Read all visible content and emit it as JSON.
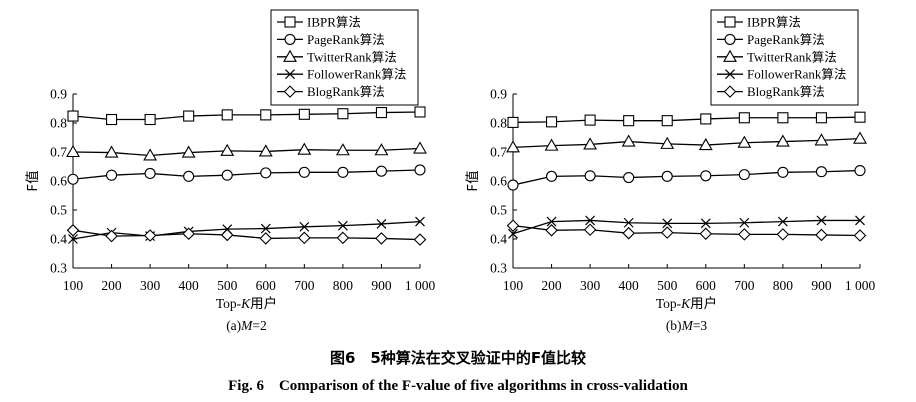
{
  "figure": {
    "caption_cn": "图6　5种算法在交叉验证中的F值比较",
    "caption_en": "Fig. 6　Comparison of the F-value of five algorithms in cross-validation"
  },
  "chart_data": [
    {
      "type": "line",
      "panel_label_prefix": "(a)",
      "panel_label_var": "M",
      "panel_label_rest": "=2",
      "xlabel_prefix": "Top-",
      "xlabel_var": "K",
      "xlabel_suffix": "用户",
      "ylabel": "F值",
      "x": [
        100,
        200,
        300,
        400,
        500,
        600,
        700,
        800,
        900,
        1000
      ],
      "x_tick_labels": [
        "100",
        "200",
        "300",
        "400",
        "500",
        "600",
        "700",
        "800",
        "900",
        "1 000"
      ],
      "ylim": [
        0.3,
        0.9
      ],
      "y_ticks": [
        "0.3",
        "0.4",
        "0.5",
        "0.6",
        "0.7",
        "0.8",
        "0.9"
      ],
      "grid": false,
      "legend_position": "top-right",
      "series": [
        {
          "name": "IBPR算法",
          "marker": "square",
          "values": [
            0.824,
            0.812,
            0.812,
            0.824,
            0.828,
            0.828,
            0.83,
            0.832,
            0.836,
            0.838
          ]
        },
        {
          "name": "PageRank算法",
          "marker": "circle",
          "values": [
            0.606,
            0.62,
            0.626,
            0.616,
            0.62,
            0.628,
            0.63,
            0.63,
            0.634,
            0.638
          ]
        },
        {
          "name": "TwitterRank算法",
          "marker": "triangle",
          "values": [
            0.7,
            0.698,
            0.688,
            0.698,
            0.704,
            0.702,
            0.708,
            0.706,
            0.706,
            0.712
          ]
        },
        {
          "name": "FollowerRank算法",
          "marker": "x",
          "values": [
            0.4,
            0.422,
            0.41,
            0.426,
            0.434,
            0.436,
            0.442,
            0.446,
            0.452,
            0.46
          ]
        },
        {
          "name": "BlogRank算法",
          "marker": "diamond",
          "values": [
            0.43,
            0.41,
            0.412,
            0.418,
            0.414,
            0.402,
            0.404,
            0.404,
            0.402,
            0.398
          ]
        }
      ]
    },
    {
      "type": "line",
      "panel_label_prefix": "(b)",
      "panel_label_var": "M",
      "panel_label_rest": "=3",
      "xlabel_prefix": "Top-",
      "xlabel_var": "K",
      "xlabel_suffix": "用户",
      "ylabel": "F值",
      "x": [
        100,
        200,
        300,
        400,
        500,
        600,
        700,
        800,
        900,
        1000
      ],
      "x_tick_labels": [
        "100",
        "200",
        "300",
        "400",
        "500",
        "600",
        "700",
        "800",
        "900",
        "1 000"
      ],
      "ylim": [
        0.3,
        0.9
      ],
      "y_ticks": [
        "0.3",
        "0.4",
        "0.5",
        "0.6",
        "0.7",
        "0.8",
        "0.9"
      ],
      "grid": false,
      "legend_position": "top-right",
      "series": [
        {
          "name": "IBPR算法",
          "marker": "square",
          "values": [
            0.802,
            0.804,
            0.81,
            0.808,
            0.808,
            0.814,
            0.818,
            0.818,
            0.818,
            0.82
          ]
        },
        {
          "name": "PageRank算法",
          "marker": "circle",
          "values": [
            0.586,
            0.616,
            0.618,
            0.612,
            0.616,
            0.618,
            0.622,
            0.63,
            0.632,
            0.636
          ]
        },
        {
          "name": "TwitterRank算法",
          "marker": "triangle",
          "values": [
            0.716,
            0.722,
            0.726,
            0.736,
            0.728,
            0.724,
            0.732,
            0.736,
            0.74,
            0.746
          ]
        },
        {
          "name": "FollowerRank算法",
          "marker": "x",
          "values": [
            0.418,
            0.46,
            0.464,
            0.456,
            0.454,
            0.454,
            0.456,
            0.46,
            0.464,
            0.464
          ]
        },
        {
          "name": "BlogRank算法",
          "marker": "diamond",
          "values": [
            0.446,
            0.43,
            0.432,
            0.42,
            0.422,
            0.418,
            0.416,
            0.416,
            0.414,
            0.412
          ]
        }
      ]
    }
  ]
}
